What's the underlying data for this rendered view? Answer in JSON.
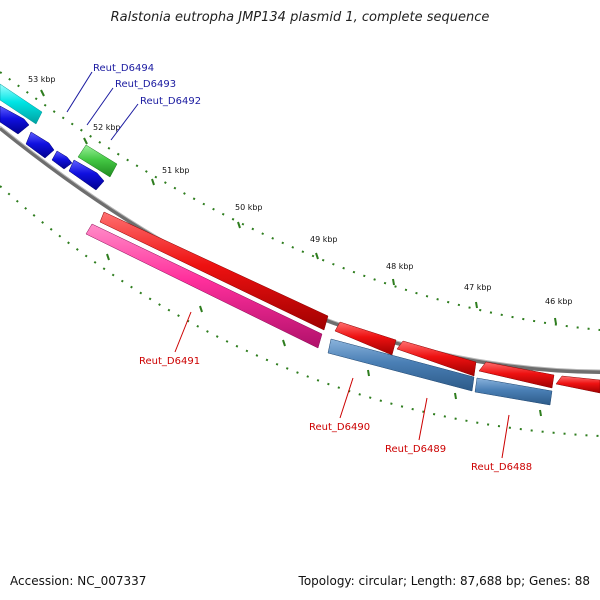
{
  "title": "Ralstonia eutropha JMP134 plasmid 1, complete sequence",
  "accession": "Accession: NC_007337",
  "summary": "Topology: circular; Length: 87,688 bp; Genes: 88",
  "colors": {
    "backbone": "#888888",
    "ticks": "#2e7d1e",
    "forward_strand": [
      "#00e5e5",
      "#1010e0",
      "#44c844"
    ],
    "reverse_strand": [
      "#ee1111",
      "#ff2f9c",
      "#4a7fb5"
    ],
    "label_forward": "#1a1aa0",
    "label_reverse": "#cc0000"
  },
  "kbp_labels": [
    "53 kbp",
    "52 kbp",
    "51 kbp",
    "50 kbp",
    "49 kbp",
    "48 kbp",
    "47 kbp",
    "46 kbp"
  ],
  "gene_labels": {
    "forward": [
      "Reut_D6494",
      "Reut_D6493",
      "Reut_D6492"
    ],
    "reverse": [
      "Reut_D6491",
      "Reut_D6490",
      "Reut_D6489",
      "Reut_D6488"
    ]
  }
}
